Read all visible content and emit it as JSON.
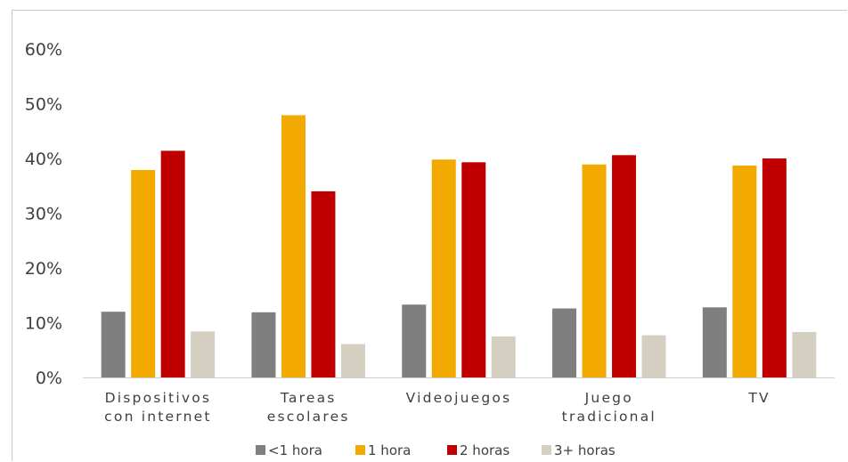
{
  "chart_data": {
    "type": "bar",
    "categories": [
      [
        "Dispositivos",
        "con internet"
      ],
      [
        "Tareas",
        "escolares"
      ],
      [
        "Videojuegos"
      ],
      [
        "Juego",
        "tradicional"
      ],
      [
        "TV"
      ]
    ],
    "yticks": [
      "0%",
      "10%",
      "20%",
      "30%",
      "40%",
      "50%",
      "60%"
    ],
    "ylim": [
      0,
      60
    ],
    "legend_position": "bottom",
    "grid": false,
    "series": [
      {
        "name": "<1 hora",
        "color": "#7f7f7f",
        "values": [
          12.0,
          11.9,
          13.3,
          12.6,
          12.8
        ]
      },
      {
        "name": "1 hora",
        "color": "#f2a900",
        "values": [
          37.9,
          47.9,
          39.8,
          38.9,
          38.7
        ]
      },
      {
        "name": "2 horas",
        "color": "#c00000",
        "values": [
          41.4,
          34.0,
          39.3,
          40.6,
          40.0
        ]
      },
      {
        "name": "3+ horas",
        "color": "#d5cfc2",
        "values": [
          8.4,
          6.1,
          7.5,
          7.7,
          8.3
        ]
      }
    ]
  }
}
